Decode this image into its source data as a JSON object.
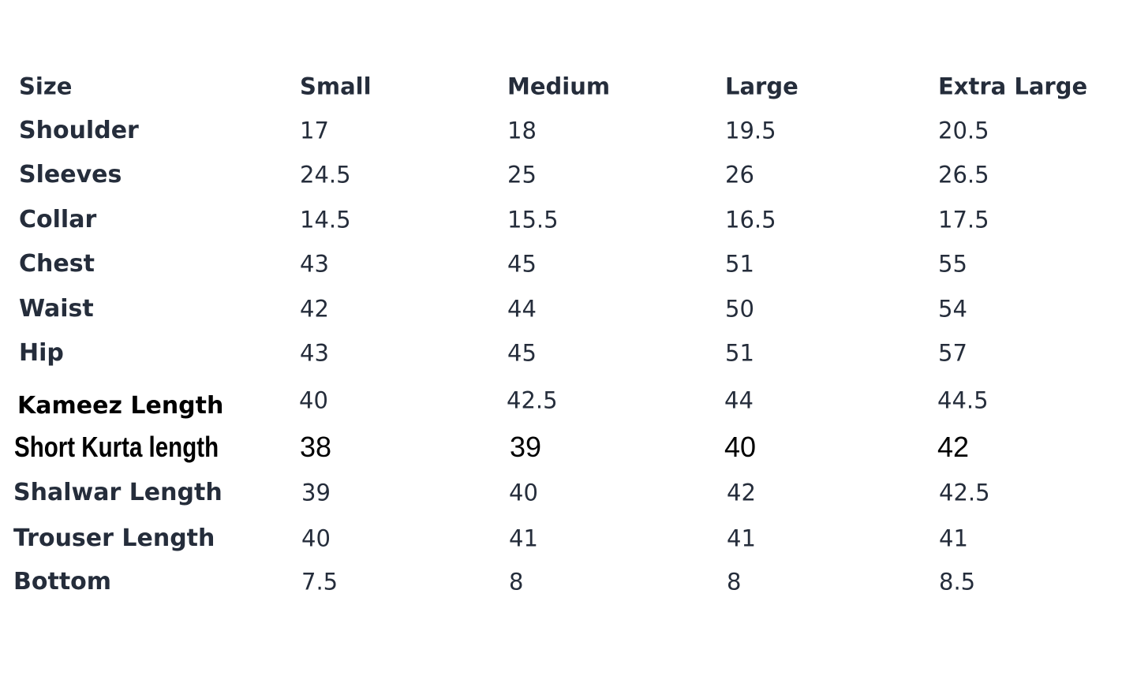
{
  "table": {
    "header": [
      "Size",
      "Small",
      "Medium",
      "Large",
      "Extra Large"
    ],
    "rows": [
      [
        "Shoulder",
        17,
        18,
        19.5,
        20.5
      ],
      [
        "Sleeves",
        24.5,
        25,
        26,
        26.5
      ],
      [
        "Collar",
        14.5,
        15.5,
        16.5,
        17.5
      ],
      [
        "Chest",
        43,
        45,
        51,
        55
      ],
      [
        "Waist",
        42,
        44,
        50,
        54
      ],
      [
        "Hip",
        43,
        45,
        51,
        57
      ],
      [
        "Kameez Length",
        40,
        42.5,
        44,
        44.5
      ],
      [
        "Short Kurta length",
        38,
        39,
        40,
        42
      ],
      [
        "Shalwar Length",
        39,
        40,
        42,
        42.5
      ],
      [
        "Trouser Length",
        40,
        41,
        41,
        41
      ],
      [
        "Bottom",
        7.5,
        8,
        8,
        8.5
      ]
    ]
  }
}
